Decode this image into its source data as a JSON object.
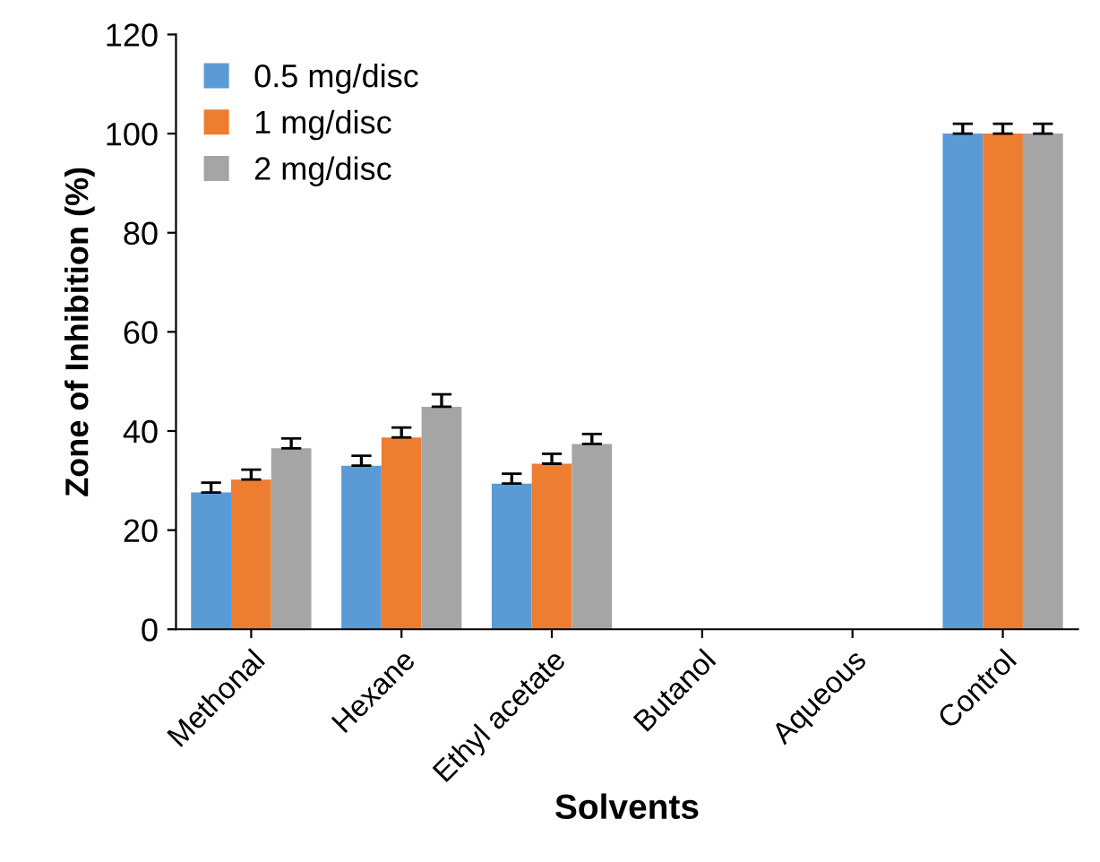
{
  "chart_data": {
    "type": "bar",
    "xlabel": "Solvents",
    "ylabel": "Zone of Inhibition (%)",
    "categories": [
      "Methonal",
      "Hexane",
      "Ethyl acetate",
      "Butanol",
      "Aqueous",
      "Control"
    ],
    "series": [
      {
        "name": "0.5 mg/disc",
        "color": "#5b9bd5",
        "values": [
          27.6,
          33,
          29.4,
          0,
          0,
          100
        ],
        "errors": [
          2,
          2,
          2,
          null,
          null,
          2
        ]
      },
      {
        "name": "1 mg/disc",
        "color": "#ed7d31",
        "values": [
          30.2,
          38.7,
          33.4,
          0,
          0,
          100
        ],
        "errors": [
          2,
          2,
          2,
          null,
          null,
          2
        ]
      },
      {
        "name": "2 mg/disc",
        "color": "#a5a5a5",
        "values": [
          36.5,
          44.9,
          37.4,
          0,
          0,
          100
        ],
        "errors": [
          2,
          2.5,
          2,
          null,
          null,
          2
        ]
      }
    ],
    "ylim": [
      0,
      120
    ],
    "yticks": [
      0,
      20,
      40,
      60,
      80,
      100,
      120
    ],
    "grid": false,
    "legend": "top left"
  }
}
